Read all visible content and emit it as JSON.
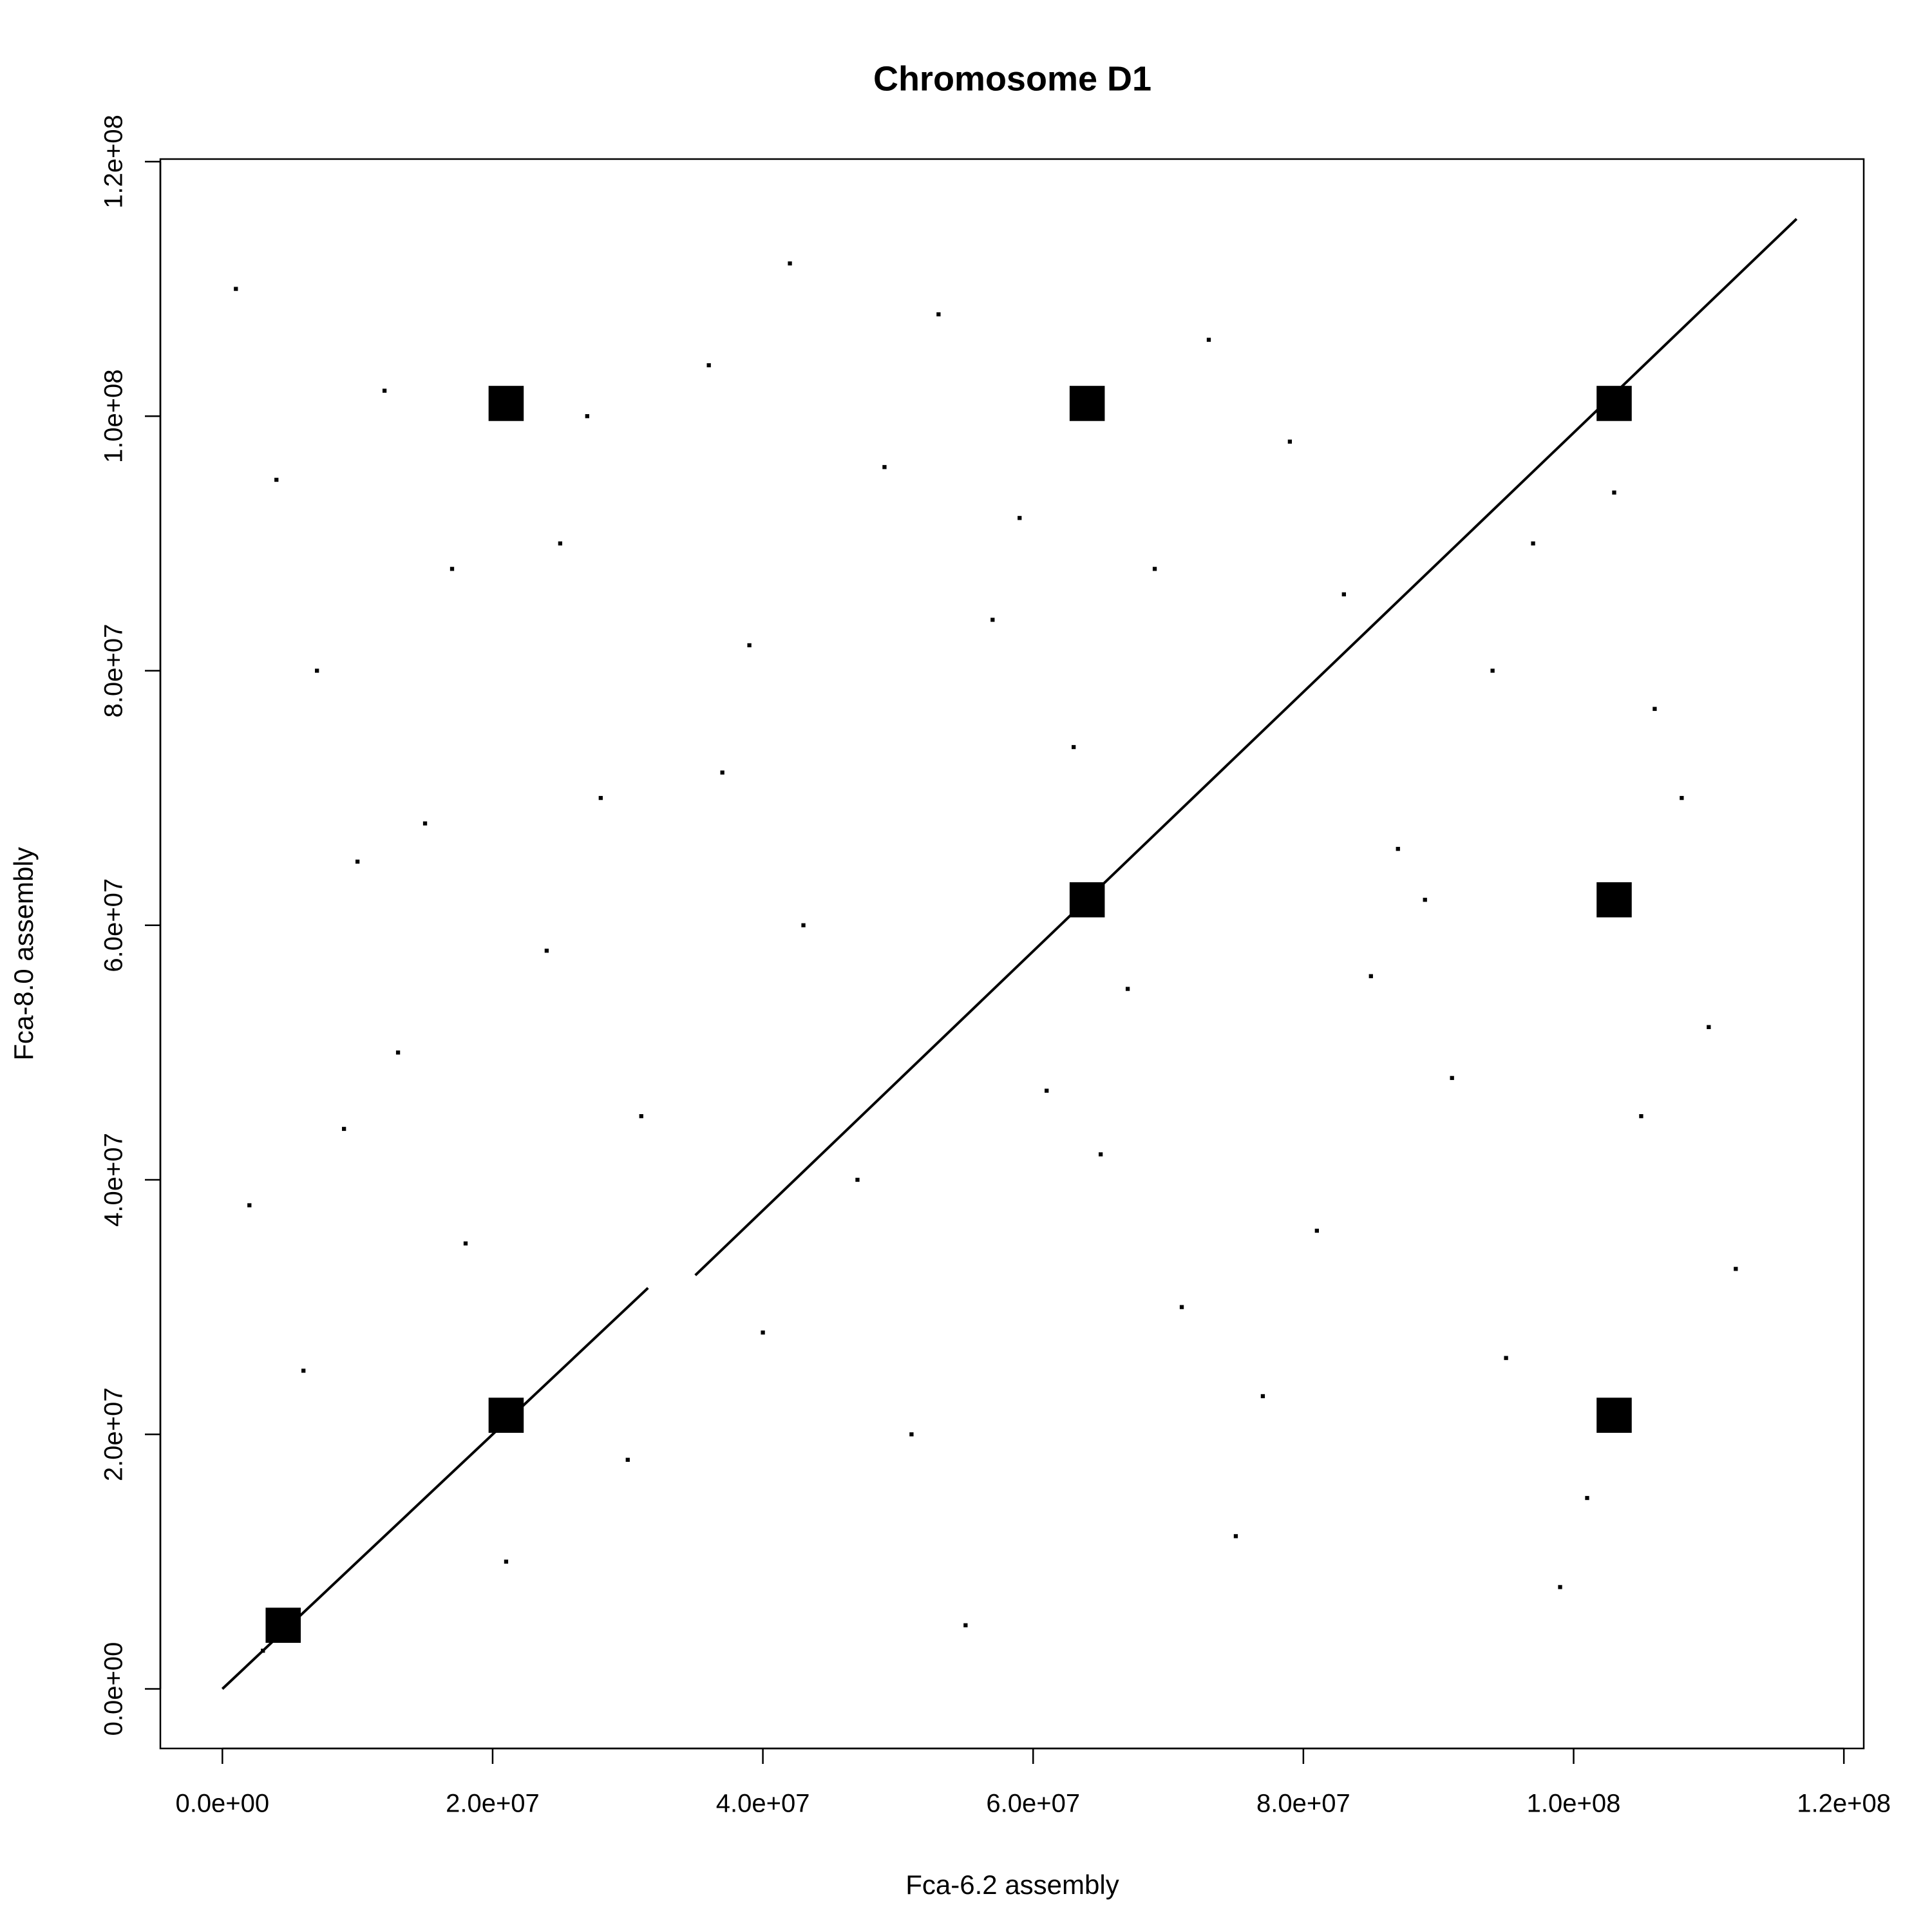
{
  "chart_data": {
    "type": "scatter",
    "title": "Chromosome D1",
    "x_label": "Fca-6.2 assembly",
    "y_label": "Fca-8.0 assembly",
    "xlim": [
      -4590000,
      121470000
    ],
    "ylim": [
      -4680000,
      120200000
    ],
    "xticks": [
      {
        "value": 0,
        "label": "0.0e+00"
      },
      {
        "value": 20000000,
        "label": "2.0e+07"
      },
      {
        "value": 40000000,
        "label": "4.0e+07"
      },
      {
        "value": 60000000,
        "label": "6.0e+07"
      },
      {
        "value": 80000000,
        "label": "8.0e+07"
      },
      {
        "value": 100000000,
        "label": "1.0e+08"
      },
      {
        "value": 120000000,
        "label": "1.2e+08"
      }
    ],
    "yticks": [
      {
        "value": 0,
        "label": "0.0e+00"
      },
      {
        "value": 20000000,
        "label": "2.0e+07"
      },
      {
        "value": 40000000,
        "label": "4.0e+07"
      },
      {
        "value": 60000000,
        "label": "6.0e+07"
      },
      {
        "value": 80000000,
        "label": "8.0e+07"
      },
      {
        "value": 100000000,
        "label": "1.0e+08"
      },
      {
        "value": 120000000,
        "label": "1.2e+08"
      }
    ],
    "series": [
      {
        "color": "#000000",
        "mode": "line",
        "x": [
          0,
          31500000,
          null,
          35000000,
          116500000
        ],
        "y": [
          0,
          31500000,
          null,
          32500000,
          115500000
        ]
      },
      {
        "color": "#000000",
        "mode": "points",
        "marker_size": 2.6,
        "x": [
          64000000,
          103000000,
          21000000,
          21000000,
          103000000,
          103000000,
          64000000,
          4500000
        ],
        "y": [
          62000000,
          101000000,
          21500000,
          101000000,
          21500000,
          62000000,
          101000000,
          5000000
        ]
      },
      {
        "color": "#000000",
        "mode": "points",
        "marker_size": 0.3,
        "x": [
          1000000,
          4000000,
          7000000,
          10000000,
          13000000,
          18000000,
          21000000,
          25000000,
          28000000,
          31000000,
          36000000,
          39000000,
          43000000,
          47000000,
          51000000,
          55000000,
          59000000,
          63000000,
          67000000,
          71000000,
          75000000,
          79000000,
          83000000,
          87000000,
          91000000,
          95000000,
          99000000,
          103000000,
          106000000,
          110000000,
          112000000,
          2000000,
          6000000,
          12000000,
          17000000,
          24000000,
          30000000,
          37000000,
          42000000,
          49000000,
          57000000,
          65000000,
          73000000,
          81000000,
          89000000,
          94000000,
          101000000,
          108000000,
          3000000,
          9000000,
          15000000,
          27000000,
          40000000,
          53000000,
          61000000,
          69000000,
          77000000,
          85000000,
          97000000,
          105000000
        ],
        "y": [
          110000000,
          95000000,
          80000000,
          65000000,
          50000000,
          35000000,
          10000000,
          90000000,
          70000000,
          45000000,
          104000000,
          82000000,
          60000000,
          40000000,
          20000000,
          5000000,
          92000000,
          74000000,
          55000000,
          30000000,
          12000000,
          98000000,
          86000000,
          66000000,
          48000000,
          26000000,
          8000000,
          94000000,
          77000000,
          52000000,
          33000000,
          38000000,
          25000000,
          102000000,
          88000000,
          58000000,
          18000000,
          72000000,
          112000000,
          96000000,
          84000000,
          42000000,
          106000000,
          36000000,
          62000000,
          80000000,
          15000000,
          70000000,
          3000000,
          44000000,
          68000000,
          100000000,
          28000000,
          108000000,
          47000000,
          88000000,
          23000000,
          56000000,
          90000000,
          45000000
        ]
      }
    ]
  }
}
